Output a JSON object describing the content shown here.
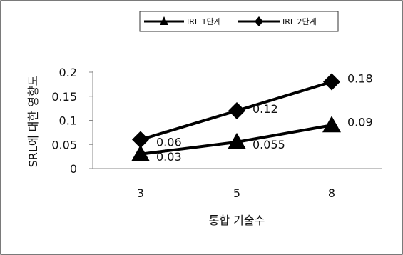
{
  "chart_data": {
    "type": "line",
    "categories": [
      "3",
      "5",
      "8"
    ],
    "series": [
      {
        "name": "IRL 1단계",
        "values": [
          0.03,
          0.055,
          0.09
        ],
        "labels": [
          "0.03",
          "0.055",
          "0.09"
        ],
        "marker": "triangle",
        "color": "#000000"
      },
      {
        "name": "IRL 2단계",
        "values": [
          0.06,
          0.12,
          0.18
        ],
        "labels": [
          "0.06",
          "0.12",
          "0.18"
        ],
        "marker": "diamond",
        "color": "#000000"
      }
    ],
    "xlabel": "통합 기술수",
    "ylabel": "SRL에 대한 영향도",
    "ylim": [
      0,
      0.2
    ],
    "yticks": [
      "0",
      "0.05",
      "0.1",
      "0.15",
      "0.2"
    ],
    "grid": false,
    "legend": "top"
  }
}
